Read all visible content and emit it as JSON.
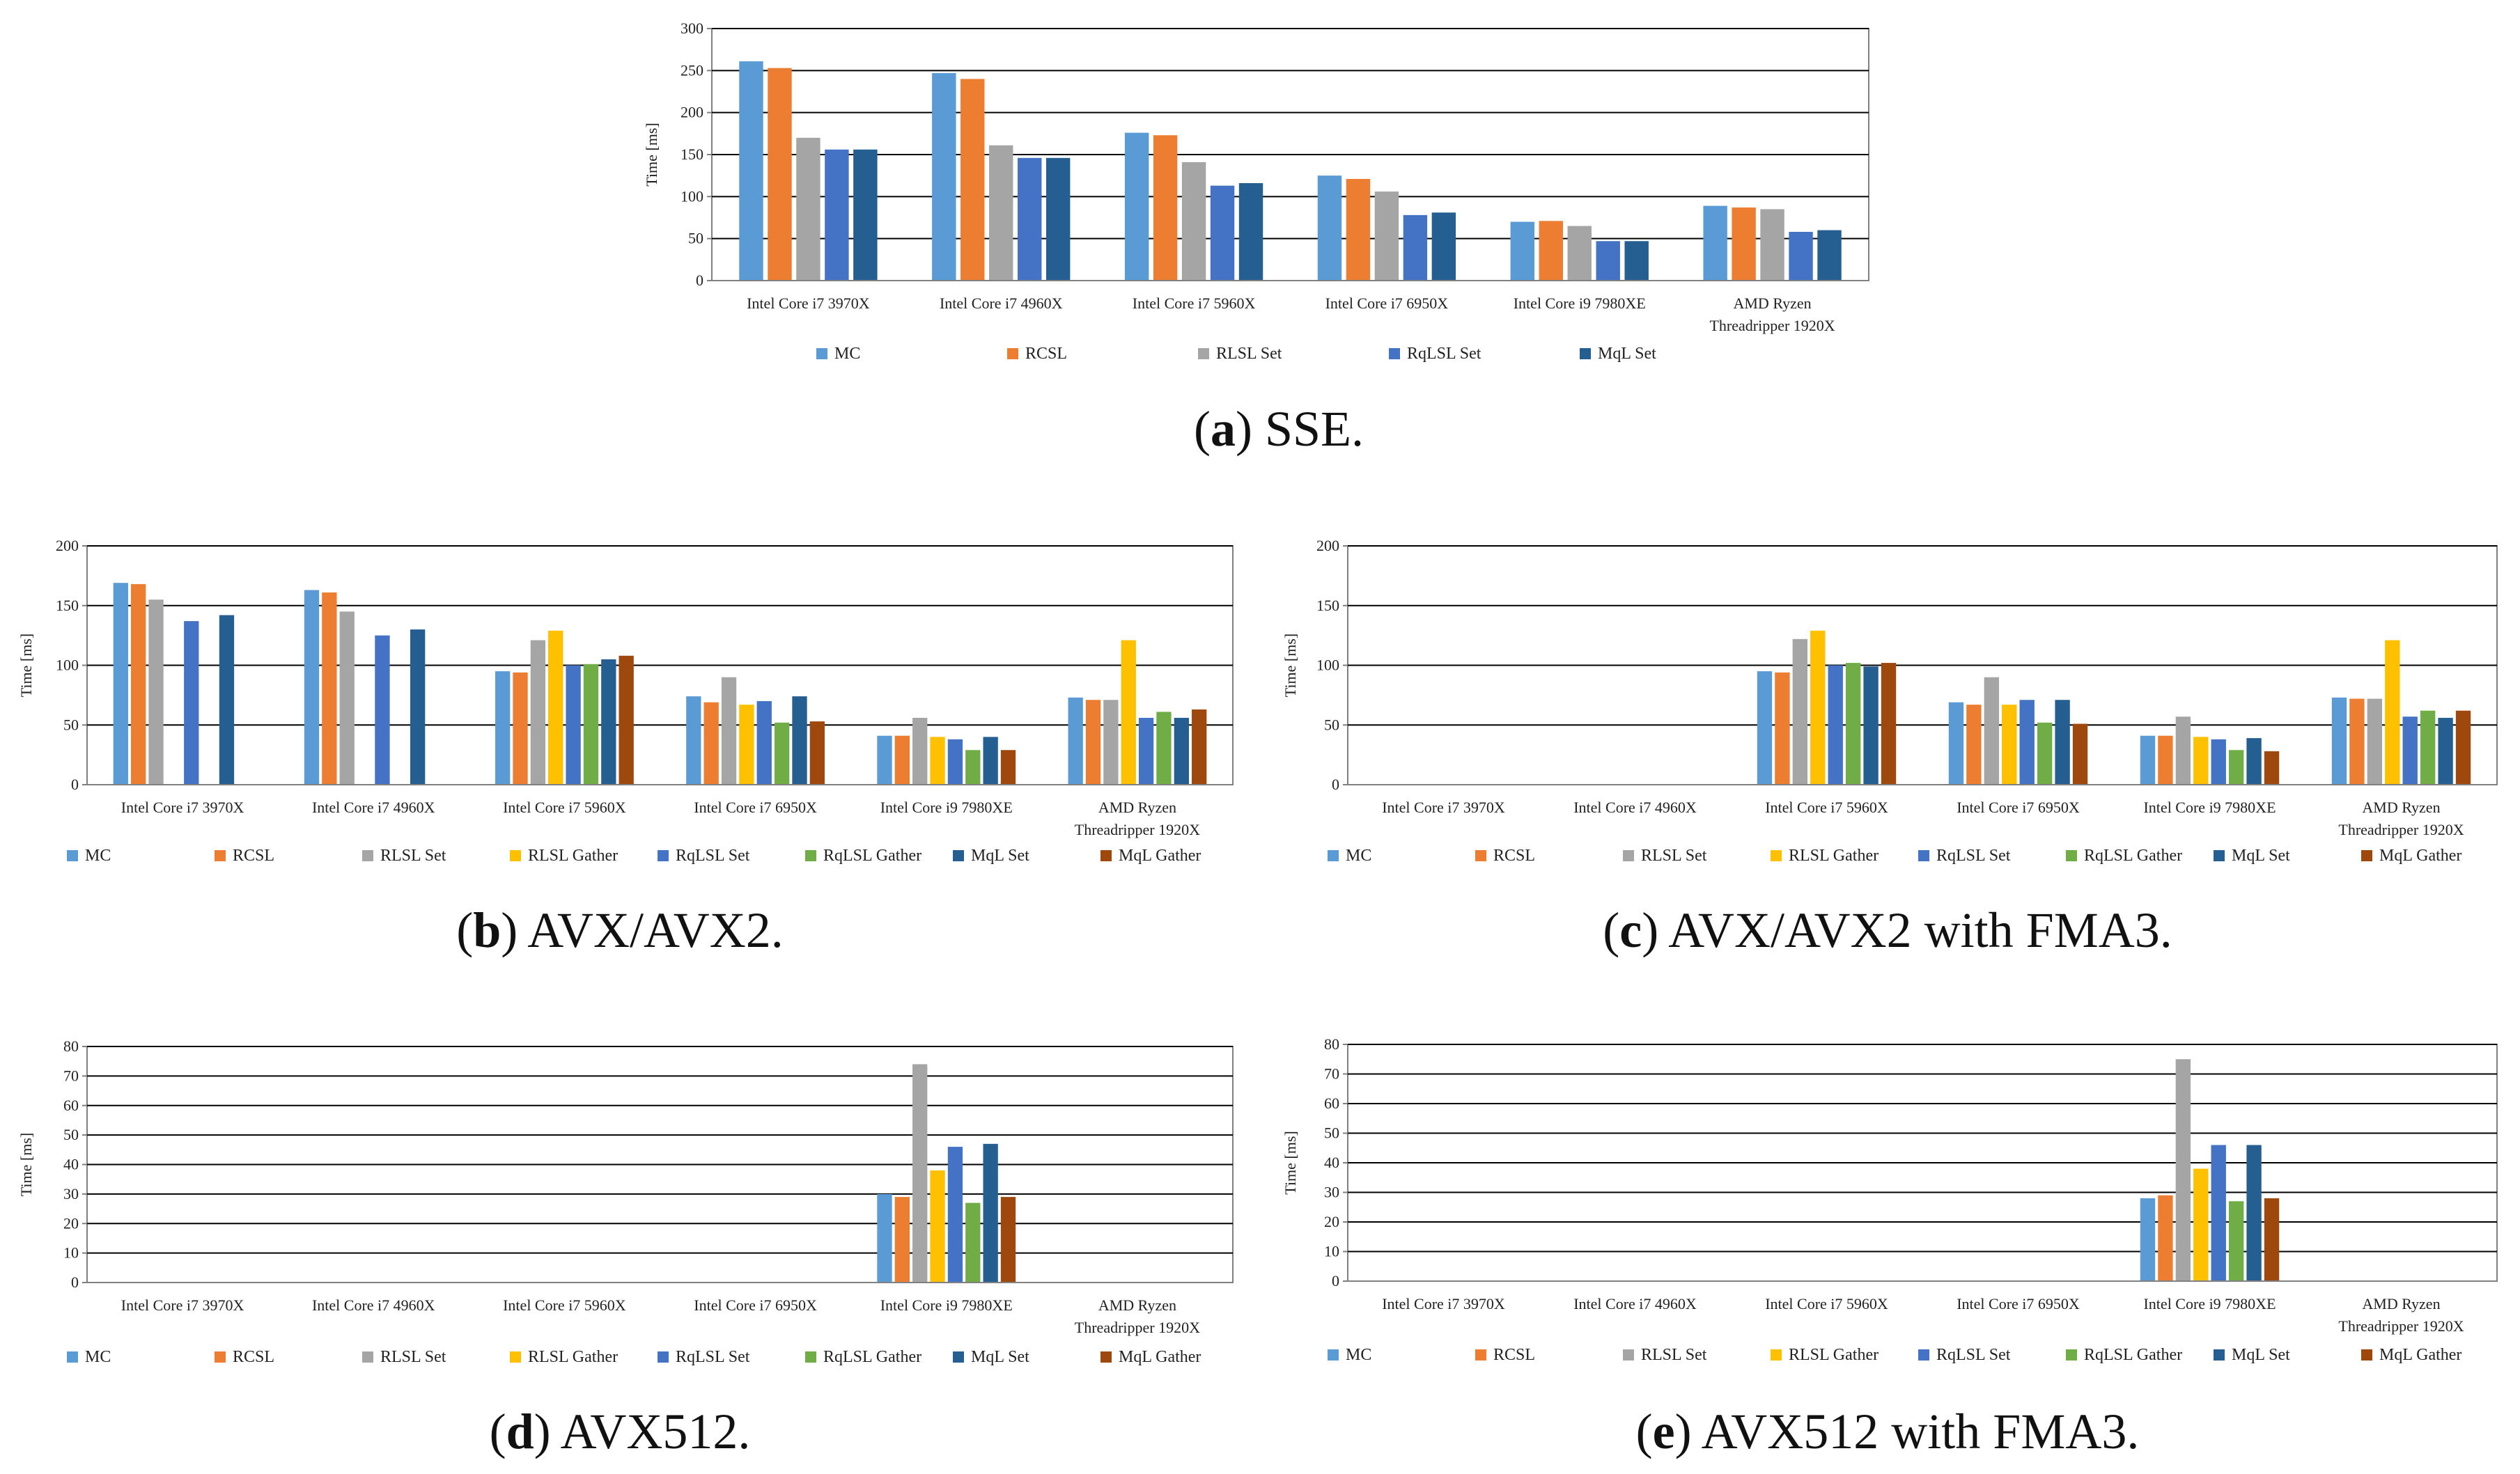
{
  "figure": {
    "colors": {
      "MC": "#5b9bd5",
      "RCSL": "#ed7d31",
      "RLSL Set": "#a5a5a5",
      "RLSL Gather": "#ffc000",
      "RqLSL Set": "#4472c4",
      "RqLSL Gather": "#70ad47",
      "MqL Set": "#255e91",
      "MqL Gather": "#9e480e"
    },
    "gridline_color": "#000000",
    "axis_color": "#808080"
  },
  "chart_data": [
    {
      "id": "a",
      "type": "bar",
      "caption": {
        "open": "(",
        "letter": "a",
        "close": ")",
        "text": " SSE."
      },
      "ylabel": "Time [ms]",
      "ylim": [
        0,
        300
      ],
      "yticks": [
        0,
        50,
        100,
        150,
        200,
        250,
        300
      ],
      "categories": [
        [
          "Intel Core i7 3970X"
        ],
        [
          "Intel Core i7 4960X"
        ],
        [
          "Intel Core i7 5960X"
        ],
        [
          "Intel Core i7 6950X"
        ],
        [
          "Intel Core i9 7980XE"
        ],
        [
          "AMD Ryzen",
          "Threadripper 1920X"
        ]
      ],
      "series": [
        {
          "name": "MC",
          "values": [
            261,
            247,
            176,
            125,
            70,
            89
          ]
        },
        {
          "name": "RCSL",
          "values": [
            253,
            240,
            173,
            121,
            71,
            87
          ]
        },
        {
          "name": "RLSL Set",
          "values": [
            170,
            161,
            141,
            106,
            65,
            85
          ]
        },
        {
          "name": "RqLSL Set",
          "values": [
            156,
            146,
            113,
            78,
            47,
            58
          ]
        },
        {
          "name": "MqL Set",
          "values": [
            156,
            146,
            116,
            81,
            47,
            60
          ]
        }
      ]
    },
    {
      "id": "b",
      "type": "bar",
      "caption": {
        "open": "(",
        "letter": "b",
        "close": ")",
        "text": " AVX/AVX2."
      },
      "ylabel": "Time [ms]",
      "ylim": [
        0,
        200
      ],
      "yticks": [
        0,
        50,
        100,
        150,
        200
      ],
      "categories": [
        [
          "Intel Core i7 3970X"
        ],
        [
          "Intel Core i7 4960X"
        ],
        [
          "Intel Core i7 5960X"
        ],
        [
          "Intel Core i7 6950X"
        ],
        [
          "Intel Core i9 7980XE"
        ],
        [
          "AMD Ryzen",
          "Threadripper 1920X"
        ]
      ],
      "series": [
        {
          "name": "MC",
          "values": [
            169,
            163,
            95,
            74,
            41,
            73
          ]
        },
        {
          "name": "RCSL",
          "values": [
            168,
            161,
            94,
            69,
            41,
            71
          ]
        },
        {
          "name": "RLSL Set",
          "values": [
            155,
            145,
            121,
            90,
            56,
            71
          ]
        },
        {
          "name": "RLSL Gather",
          "values": [
            null,
            null,
            129,
            67,
            40,
            121
          ]
        },
        {
          "name": "RqLSL Set",
          "values": [
            137,
            125,
            100,
            70,
            38,
            56
          ]
        },
        {
          "name": "RqLSL Gather",
          "values": [
            null,
            null,
            101,
            52,
            29,
            61
          ]
        },
        {
          "name": "MqL Set",
          "values": [
            142,
            130,
            105,
            74,
            40,
            56
          ]
        },
        {
          "name": "MqL Gather",
          "values": [
            null,
            null,
            108,
            53,
            29,
            63
          ]
        }
      ]
    },
    {
      "id": "c",
      "type": "bar",
      "caption": {
        "open": "(",
        "letter": "c",
        "close": ")",
        "text": " AVX/AVX2 with FMA3."
      },
      "ylabel": "Time [ms]",
      "ylim": [
        0,
        200
      ],
      "yticks": [
        0,
        50,
        100,
        150,
        200
      ],
      "categories": [
        [
          "Intel Core i7 3970X"
        ],
        [
          "Intel Core i7 4960X"
        ],
        [
          "Intel Core i7 5960X"
        ],
        [
          "Intel Core i7 6950X"
        ],
        [
          "Intel Core i9 7980XE"
        ],
        [
          "AMD Ryzen",
          "Threadripper 1920X"
        ]
      ],
      "series": [
        {
          "name": "MC",
          "values": [
            null,
            null,
            95,
            69,
            41,
            73
          ]
        },
        {
          "name": "RCSL",
          "values": [
            null,
            null,
            94,
            67,
            41,
            72
          ]
        },
        {
          "name": "RLSL Set",
          "values": [
            null,
            null,
            122,
            90,
            57,
            72
          ]
        },
        {
          "name": "RLSL Gather",
          "values": [
            null,
            null,
            129,
            67,
            40,
            121
          ]
        },
        {
          "name": "RqLSL Set",
          "values": [
            null,
            null,
            100,
            71,
            38,
            57
          ]
        },
        {
          "name": "RqLSL Gather",
          "values": [
            null,
            null,
            102,
            52,
            29,
            62
          ]
        },
        {
          "name": "MqL Set",
          "values": [
            null,
            null,
            99,
            71,
            39,
            56
          ]
        },
        {
          "name": "MqL Gather",
          "values": [
            null,
            null,
            102,
            51,
            28,
            62
          ]
        }
      ]
    },
    {
      "id": "d",
      "type": "bar",
      "caption": {
        "open": "(",
        "letter": "d",
        "close": ")",
        "text": " AVX512."
      },
      "ylabel": "Time [ms]",
      "ylim": [
        0,
        80
      ],
      "yticks": [
        0,
        10,
        20,
        30,
        40,
        50,
        60,
        70,
        80
      ],
      "categories": [
        [
          "Intel Core i7 3970X"
        ],
        [
          "Intel Core i7 4960X"
        ],
        [
          "Intel Core i7 5960X"
        ],
        [
          "Intel Core i7 6950X"
        ],
        [
          "Intel Core i9 7980XE"
        ],
        [
          "AMD Ryzen",
          "Threadripper 1920X"
        ]
      ],
      "series": [
        {
          "name": "MC",
          "values": [
            null,
            null,
            null,
            null,
            30,
            null
          ]
        },
        {
          "name": "RCSL",
          "values": [
            null,
            null,
            null,
            null,
            29,
            null
          ]
        },
        {
          "name": "RLSL Set",
          "values": [
            null,
            null,
            null,
            null,
            74,
            null
          ]
        },
        {
          "name": "RLSL Gather",
          "values": [
            null,
            null,
            null,
            null,
            38,
            null
          ]
        },
        {
          "name": "RqLSL Set",
          "values": [
            null,
            null,
            null,
            null,
            46,
            null
          ]
        },
        {
          "name": "RqLSL Gather",
          "values": [
            null,
            null,
            null,
            null,
            27,
            null
          ]
        },
        {
          "name": "MqL Set",
          "values": [
            null,
            null,
            null,
            null,
            47,
            null
          ]
        },
        {
          "name": "MqL Gather",
          "values": [
            null,
            null,
            null,
            null,
            29,
            null
          ]
        }
      ]
    },
    {
      "id": "e",
      "type": "bar",
      "caption": {
        "open": "(",
        "letter": "e",
        "close": ")",
        "text": " AVX512 with FMA3."
      },
      "ylabel": "Time [ms]",
      "ylim": [
        0,
        80
      ],
      "yticks": [
        0,
        10,
        20,
        30,
        40,
        50,
        60,
        70,
        80
      ],
      "categories": [
        [
          "Intel Core i7 3970X"
        ],
        [
          "Intel Core i7 4960X"
        ],
        [
          "Intel Core i7 5960X"
        ],
        [
          "Intel Core i7 6950X"
        ],
        [
          "Intel Core i9 7980XE"
        ],
        [
          "AMD Ryzen",
          "Threadripper 1920X"
        ]
      ],
      "series": [
        {
          "name": "MC",
          "values": [
            null,
            null,
            null,
            null,
            28,
            null
          ]
        },
        {
          "name": "RCSL",
          "values": [
            null,
            null,
            null,
            null,
            29,
            null
          ]
        },
        {
          "name": "RLSL Set",
          "values": [
            null,
            null,
            null,
            null,
            75,
            null
          ]
        },
        {
          "name": "RLSL Gather",
          "values": [
            null,
            null,
            null,
            null,
            38,
            null
          ]
        },
        {
          "name": "RqLSL Set",
          "values": [
            null,
            null,
            null,
            null,
            46,
            null
          ]
        },
        {
          "name": "RqLSL Gather",
          "values": [
            null,
            null,
            null,
            null,
            27,
            null
          ]
        },
        {
          "name": "MqL Set",
          "values": [
            null,
            null,
            null,
            null,
            46,
            null
          ]
        },
        {
          "name": "MqL Gather",
          "values": [
            null,
            null,
            null,
            null,
            28,
            null
          ]
        }
      ]
    }
  ]
}
